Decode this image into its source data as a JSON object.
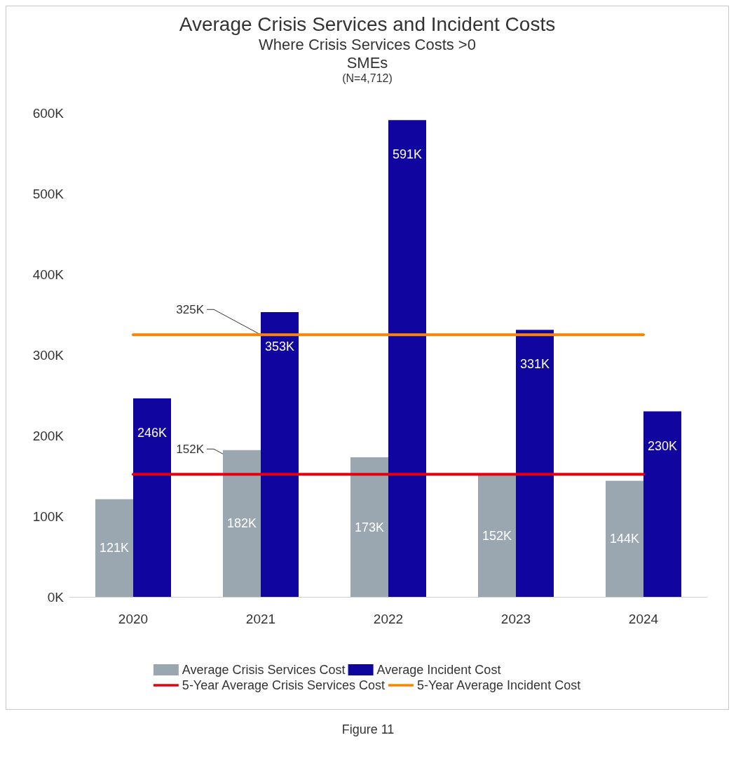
{
  "chart_data": {
    "type": "bar",
    "title": "Average Crisis Services and Incident Costs",
    "subtitle": "Where Crisis Services Costs >0\nSMEs\n(N=4,712)",
    "categories": [
      "2020",
      "2021",
      "2022",
      "2023",
      "2024"
    ],
    "series": [
      {
        "name": "Average Crisis Services Cost",
        "color": "#9aa6b0",
        "values": [
          121,
          182,
          173,
          152,
          144
        ],
        "value_labels": [
          "121K",
          "182K",
          "173K",
          "152K",
          "144K"
        ]
      },
      {
        "name": "Average Incident Cost",
        "color": "#10069f",
        "values": [
          246,
          353,
          591,
          331,
          230
        ],
        "value_labels": [
          "246K",
          "353K",
          "591K",
          "331K",
          "230K"
        ]
      },
      {
        "name": "5-Year Average Crisis Services Cost",
        "type": "line",
        "color": "#e4000f",
        "values": [
          152,
          152,
          152,
          152,
          152
        ]
      },
      {
        "name": "5-Year Average Incident Cost",
        "type": "line",
        "color": "#ff8200",
        "values": [
          325,
          325,
          325,
          325,
          325
        ]
      }
    ],
    "ylim": [
      0,
      600
    ],
    "yticks": [
      {
        "value": 0,
        "label": "0K"
      },
      {
        "value": 100,
        "label": "100K"
      },
      {
        "value": 200,
        "label": "200K"
      },
      {
        "value": 300,
        "label": "300K"
      },
      {
        "value": 400,
        "label": "400K"
      },
      {
        "value": 500,
        "label": "500K"
      },
      {
        "value": 600,
        "label": "600K"
      }
    ],
    "grid": false,
    "legend": "bottom",
    "marker": "none",
    "line_style": "solid",
    "annotations": [
      {
        "text": "325K",
        "x": "2021",
        "y": 325
      },
      {
        "text": "152K",
        "x": "2021",
        "y": 152
      },
      "Figure 11"
    ]
  }
}
